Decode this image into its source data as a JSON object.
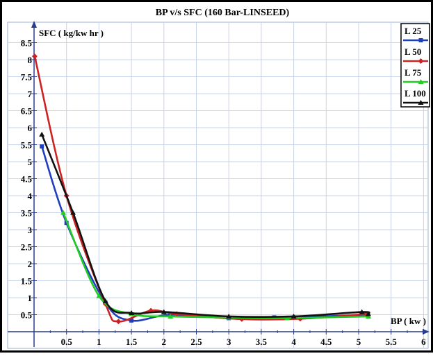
{
  "chart_data": {
    "type": "line",
    "title": "BP v/s SFC (160 Bar-LINSEED)",
    "xlabel": "BP ( kw )",
    "ylabel": "SFC ( kg/kw hr )",
    "xlim": [
      -0.05,
      6.15
    ],
    "ylim": [
      -0.05,
      8.95
    ],
    "x_ticks": [
      "0.5",
      "1",
      "1.5",
      "2",
      "2.5",
      "3",
      "3.5",
      "4",
      "4.5",
      "5",
      "5.5",
      "6"
    ],
    "y_ticks": [
      "0.5",
      "1",
      "1.5",
      "2",
      "2.5",
      "3",
      "3.5",
      "4",
      "4.5",
      "5",
      "5.5",
      "6",
      "6.5",
      "7",
      "7.5",
      "8",
      "8.5"
    ],
    "grid": true,
    "legend_position": "top-right",
    "series": [
      {
        "name": "L 25",
        "color": "#1f3fbf",
        "marker": "square",
        "x": [
          0.12,
          0.5,
          1.1,
          1.5,
          2.1,
          3.0,
          3.7,
          4.0,
          5.1
        ],
        "y": [
          5.45,
          3.2,
          0.85,
          0.33,
          0.5,
          0.4,
          0.42,
          0.42,
          0.5
        ]
      },
      {
        "name": "L 50",
        "color": "#cc2222",
        "marker": "diamond",
        "x": [
          0.01,
          0.5,
          1.1,
          1.3,
          1.8,
          2.2,
          3.2,
          4.1,
          5.1
        ],
        "y": [
          8.1,
          4.0,
          0.82,
          0.3,
          0.62,
          0.52,
          0.37,
          0.38,
          0.52
        ]
      },
      {
        "name": "L 75",
        "color": "#22cc22",
        "marker": "triangle",
        "x": [
          0.45,
          1.0,
          1.5,
          2.1,
          3.0,
          3.9,
          5.15
        ],
        "y": [
          3.5,
          1.05,
          0.52,
          0.45,
          0.42,
          0.4,
          0.45
        ]
      },
      {
        "name": "L 100",
        "color": "#111111",
        "marker": "triangle",
        "x": [
          0.12,
          0.6,
          1.1,
          1.5,
          2.0,
          3.0,
          4.0,
          5.05,
          5.15
        ],
        "y": [
          5.8,
          3.5,
          0.9,
          0.55,
          0.58,
          0.45,
          0.45,
          0.58,
          0.52
        ]
      }
    ]
  }
}
